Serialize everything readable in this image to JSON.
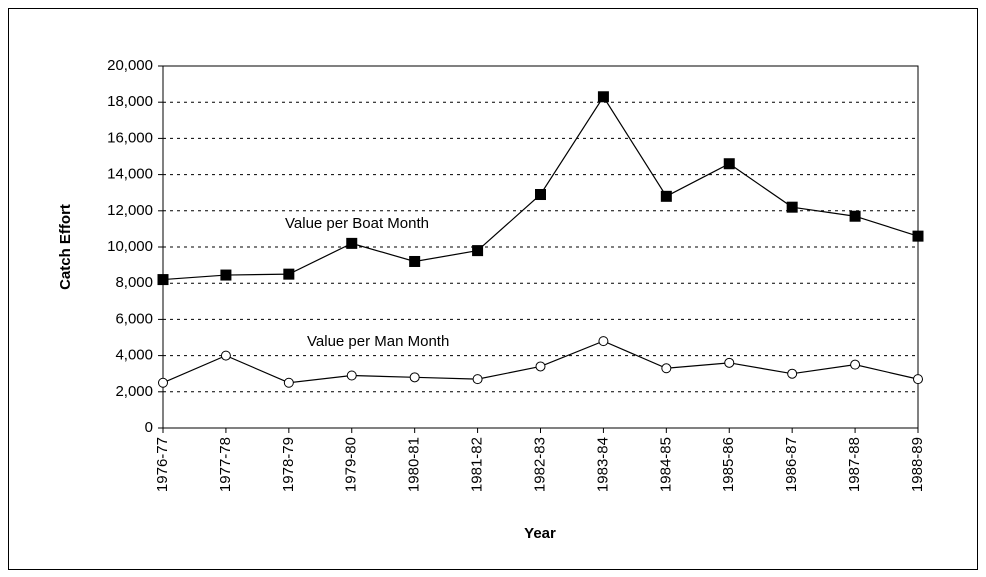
{
  "chart_data": {
    "type": "line",
    "x_label": "Year",
    "y_label": "Catch Effort",
    "categories": [
      "1976-77",
      "1977-78",
      "1978-79",
      "1979-80",
      "1980-81",
      "1981-82",
      "1982-83",
      "1983-84",
      "1984-85",
      "1985-86",
      "1986-87",
      "1987-88",
      "1988-89"
    ],
    "series": [
      {
        "name": "Value per Boat Month",
        "color": "#000000",
        "marker": "square",
        "values": [
          8200,
          8450,
          8500,
          10200,
          9200,
          9800,
          12900,
          18300,
          12800,
          14600,
          12200,
          11700,
          10600
        ]
      },
      {
        "name": "Value per Man Month",
        "color": "#000000",
        "marker": "circle",
        "values": [
          2500,
          4000,
          2500,
          2900,
          2800,
          2700,
          3400,
          4800,
          3300,
          3600,
          3000,
          3500,
          2700
        ]
      }
    ],
    "ylim": [
      0,
      20000
    ],
    "yticks": [
      0,
      {
        "value": 2000,
        "label": "2,000"
      },
      {
        "value": 4000,
        "label": "4,000"
      },
      {
        "value": 6000,
        "label": "6,000"
      },
      {
        "value": 8000,
        "label": "8,000"
      },
      {
        "value": 10000,
        "label": "10,000"
      },
      {
        "value": 12000,
        "label": "12,000"
      },
      {
        "value": 14000,
        "label": "14,000"
      },
      {
        "value": 16000,
        "label": "16,000"
      },
      {
        "value": 18000,
        "label": "18,000"
      },
      {
        "value": 20000,
        "label": "20,000"
      }
    ],
    "grid": true
  }
}
